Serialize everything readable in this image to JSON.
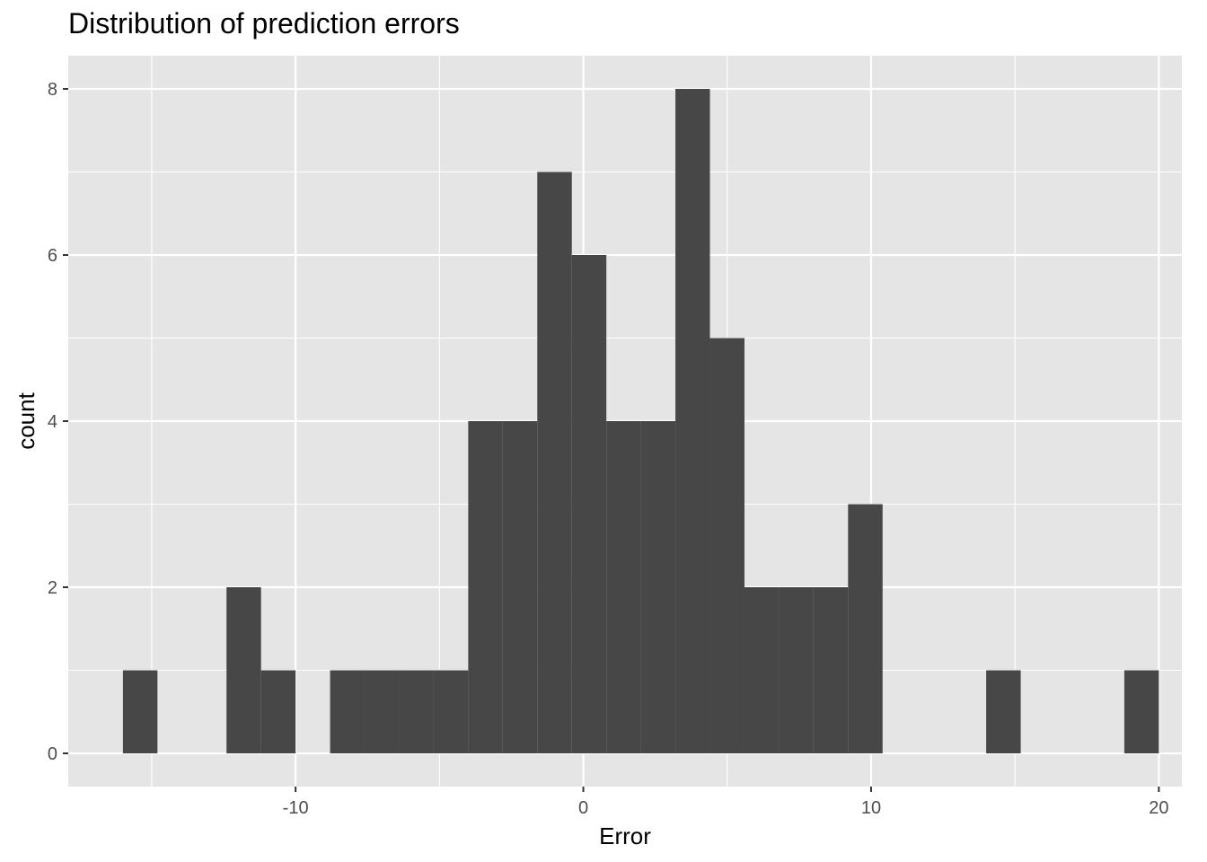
{
  "chart_data": {
    "type": "bar",
    "title": "Distribution of prediction errors",
    "xlabel": "Error",
    "ylabel": "count",
    "xlim": [
      -17.9,
      20.8
    ],
    "ylim": [
      -0.4,
      8.4
    ],
    "x_ticks": [
      -10,
      0,
      10,
      20
    ],
    "x_tick_labels": [
      "-10",
      "0",
      "10",
      "20"
    ],
    "y_ticks": [
      0,
      2,
      4,
      6,
      8
    ],
    "y_tick_labels": [
      "0",
      "2",
      "4",
      "6",
      "8"
    ],
    "grid": true,
    "bin_width": 1.2,
    "bins": [
      {
        "x0": -16.0,
        "x1": -14.8,
        "count": 1
      },
      {
        "x0": -14.8,
        "x1": -13.6,
        "count": 0
      },
      {
        "x0": -13.6,
        "x1": -12.4,
        "count": 0
      },
      {
        "x0": -12.4,
        "x1": -11.2,
        "count": 2
      },
      {
        "x0": -11.2,
        "x1": -10.0,
        "count": 1
      },
      {
        "x0": -10.0,
        "x1": -8.8,
        "count": 0
      },
      {
        "x0": -8.8,
        "x1": -7.6,
        "count": 1
      },
      {
        "x0": -7.6,
        "x1": -6.4,
        "count": 1
      },
      {
        "x0": -6.4,
        "x1": -5.2,
        "count": 1
      },
      {
        "x0": -5.2,
        "x1": -4.0,
        "count": 1
      },
      {
        "x0": -4.0,
        "x1": -2.8,
        "count": 4
      },
      {
        "x0": -2.8,
        "x1": -1.6,
        "count": 4
      },
      {
        "x0": -1.6,
        "x1": -0.4,
        "count": 7
      },
      {
        "x0": -0.4,
        "x1": 0.8,
        "count": 6
      },
      {
        "x0": 0.8,
        "x1": 2.0,
        "count": 4
      },
      {
        "x0": 2.0,
        "x1": 3.2,
        "count": 4
      },
      {
        "x0": 3.2,
        "x1": 4.4,
        "count": 8
      },
      {
        "x0": 4.4,
        "x1": 5.6,
        "count": 5
      },
      {
        "x0": 5.6,
        "x1": 6.8,
        "count": 2
      },
      {
        "x0": 6.8,
        "x1": 8.0,
        "count": 2
      },
      {
        "x0": 8.0,
        "x1": 9.2,
        "count": 2
      },
      {
        "x0": 9.2,
        "x1": 10.4,
        "count": 3
      },
      {
        "x0": 10.4,
        "x1": 11.6,
        "count": 0
      },
      {
        "x0": 11.6,
        "x1": 12.8,
        "count": 0
      },
      {
        "x0": 12.8,
        "x1": 14.0,
        "count": 0
      },
      {
        "x0": 14.0,
        "x1": 15.2,
        "count": 1
      },
      {
        "x0": 15.2,
        "x1": 16.4,
        "count": 0
      },
      {
        "x0": 16.4,
        "x1": 17.6,
        "count": 0
      },
      {
        "x0": 17.6,
        "x1": 18.8,
        "count": 0
      },
      {
        "x0": 18.8,
        "x1": 20.0,
        "count": 1
      }
    ],
    "colors": {
      "panel_background": "#e5e5e5",
      "grid_line": "#ffffff",
      "bar_fill": "#474747",
      "tick_label": "#4d4d4d",
      "axis_title": "#000000"
    }
  }
}
